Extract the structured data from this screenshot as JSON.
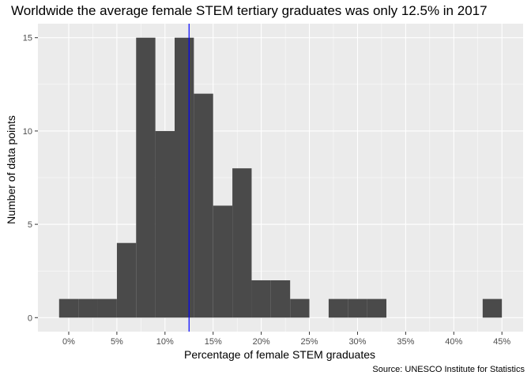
{
  "chart_data": {
    "type": "histogram",
    "title": "Worldwide the average female STEM tertiary graduates was only 12.5% in 2017",
    "xlabel": "Percentage of female STEM graduates",
    "ylabel": "Number of data points",
    "caption": "Source: UNESCO Institute for Statistics",
    "bin_width": 2,
    "x_ticks": [
      0,
      5,
      10,
      15,
      20,
      25,
      30,
      35,
      40,
      45
    ],
    "x_tick_labels": [
      "0%",
      "5%",
      "10%",
      "15%",
      "20%",
      "25%",
      "30%",
      "35%",
      "40%",
      "45%"
    ],
    "y_ticks": [
      0,
      5,
      10,
      15
    ],
    "y_tick_labels": [
      "0",
      "5",
      "10",
      "15"
    ],
    "xlim": [
      -3.2,
      47.2
    ],
    "ylim": [
      -0.75,
      15.75
    ],
    "bins": [
      {
        "center": 0,
        "count": 1
      },
      {
        "center": 2,
        "count": 1
      },
      {
        "center": 4,
        "count": 1
      },
      {
        "center": 6,
        "count": 4
      },
      {
        "center": 8,
        "count": 15
      },
      {
        "center": 10,
        "count": 10
      },
      {
        "center": 12,
        "count": 15
      },
      {
        "center": 14,
        "count": 12
      },
      {
        "center": 16,
        "count": 6
      },
      {
        "center": 18,
        "count": 8
      },
      {
        "center": 20,
        "count": 2
      },
      {
        "center": 22,
        "count": 2
      },
      {
        "center": 24,
        "count": 1
      },
      {
        "center": 26,
        "count": 0
      },
      {
        "center": 28,
        "count": 1
      },
      {
        "center": 30,
        "count": 1
      },
      {
        "center": 32,
        "count": 1
      },
      {
        "center": 44,
        "count": 1
      }
    ],
    "reference_line": {
      "x": 12.5,
      "color": "#0000ff"
    },
    "bar_color": "#4a4a4a",
    "panel_background": "#ebebeb",
    "grid_color": "#ffffff",
    "grid": true,
    "legend": "none"
  }
}
